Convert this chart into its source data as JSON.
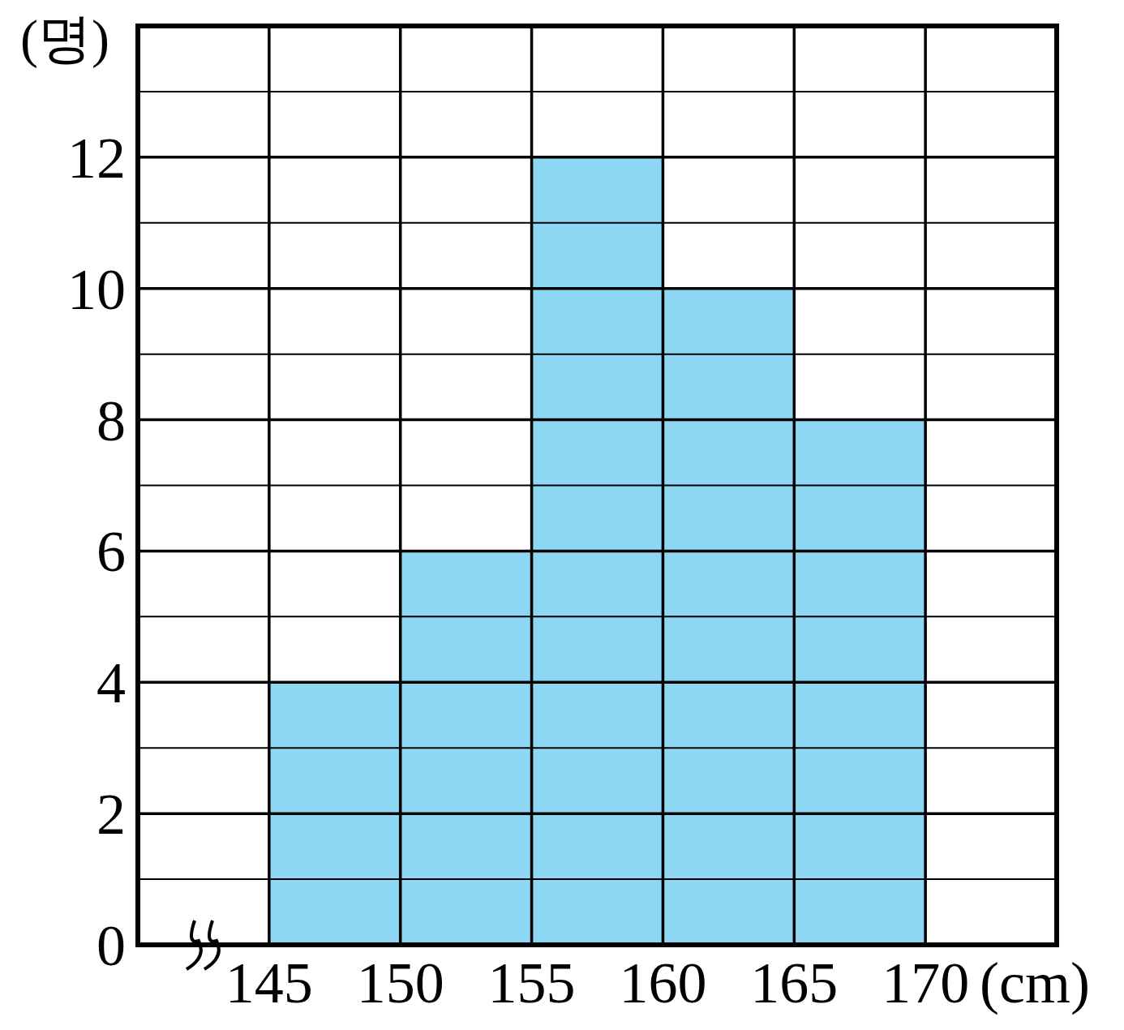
{
  "chart_data": {
    "type": "histogram",
    "xlabel": "(cm)",
    "ylabel": "(명)",
    "bins": [
      145,
      150,
      155,
      160,
      165,
      170
    ],
    "values": [
      4,
      6,
      12,
      10,
      8
    ],
    "color": "#8dd7f5",
    "xlim": [
      140,
      175
    ],
    "xticks": [
      145,
      150,
      155,
      160,
      165,
      170
    ],
    "ylim": [
      0,
      14
    ],
    "yticks": [
      0,
      {
        "value": 1,
        "label": null
      },
      2,
      {
        "value": 3,
        "label": null
      },
      4,
      {
        "value": 5,
        "label": null
      },
      6,
      {
        "value": 7,
        "label": null
      },
      8,
      {
        "value": 9,
        "label": null
      },
      10,
      {
        "value": 11,
        "label": null
      },
      12,
      {
        "value": 13,
        "label": null
      }
    ],
    "grid": true
  }
}
